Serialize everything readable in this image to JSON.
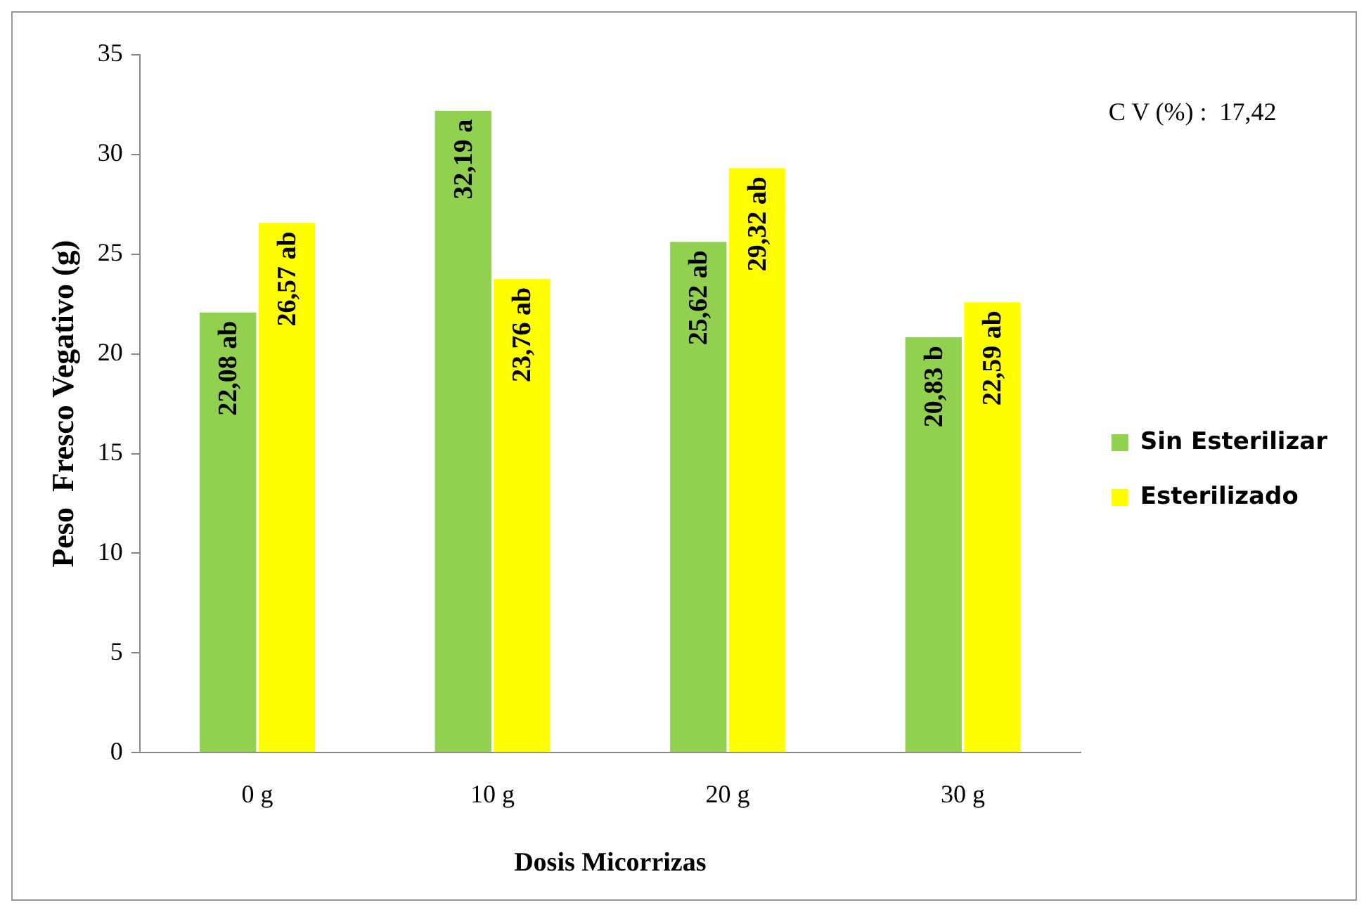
{
  "chart_data": {
    "type": "bar",
    "xlabel": "Dosis Micorrizas",
    "ylabel": "Peso  Fresco Vegativo (g)",
    "categories": [
      "0 g",
      "10 g",
      "20 g",
      "30 g"
    ],
    "series": [
      {
        "name": "Sin Esterilizar",
        "color": "#92d050",
        "values": [
          22.08,
          32.19,
          25.62,
          20.83
        ],
        "value_labels": [
          "22,08 ab",
          "32,19 a",
          "25,62 ab",
          "20,83 b"
        ]
      },
      {
        "name": "Esterilizado",
        "color": "#ffff00",
        "values": [
          26.57,
          23.76,
          29.32,
          22.59
        ],
        "value_labels": [
          "26,57 ab",
          "23,76 ab",
          "29,32 ab",
          "22,59 ab"
        ]
      }
    ],
    "ylim": [
      0,
      35
    ],
    "yticks": [
      0,
      5,
      10,
      15,
      20,
      25,
      30,
      35
    ],
    "grid": false,
    "legend": "right",
    "annotations": [
      "C V (%) :  17,42"
    ]
  }
}
